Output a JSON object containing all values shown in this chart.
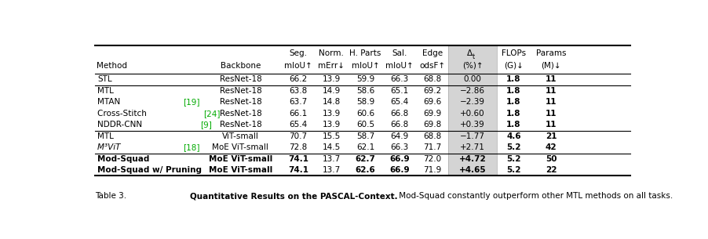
{
  "figsize": [
    9.02,
    3.05
  ],
  "dpi": 100,
  "rows": [
    [
      "STL",
      "ResNet-18",
      "66.2",
      "13.9",
      "59.9",
      "66.3",
      "68.8",
      "0.00",
      "1.8",
      "11"
    ],
    [
      "MTL",
      "ResNet-18",
      "63.8",
      "14.9",
      "58.6",
      "65.1",
      "69.2",
      "−2.86",
      "1.8",
      "11"
    ],
    [
      "MTAN",
      "ResNet-18",
      "63.7",
      "14.8",
      "58.9",
      "65.4",
      "69.6",
      "−2.39",
      "1.8",
      "11"
    ],
    [
      "Cross-Stitch",
      "ResNet-18",
      "66.1",
      "13.9",
      "60.6",
      "66.8",
      "69.9",
      "+0.60",
      "1.8",
      "11"
    ],
    [
      "NDDR-CNN",
      "ResNet-18",
      "65.4",
      "13.9",
      "60.5",
      "66.8",
      "69.8",
      "+0.39",
      "1.8",
      "11"
    ],
    [
      "MTL",
      "ViT-small",
      "70.7",
      "15.5",
      "58.7",
      "64.9",
      "68.8",
      "−1.77",
      "4.6",
      "21"
    ],
    [
      "M³ViT",
      "MoE ViT-small",
      "72.8",
      "14.5",
      "62.1",
      "66.3",
      "71.7",
      "+2.71",
      "5.2",
      "42"
    ],
    [
      "Mod-Squad",
      "MoE ViT-small",
      "74.1",
      "13.7",
      "62.7",
      "66.9",
      "72.0",
      "+4.72",
      "5.2",
      "50"
    ],
    [
      "Mod-Squad w/ Pruning",
      "MoE ViT-small",
      "74.1",
      "13.7",
      "62.6",
      "66.9",
      "71.9",
      "+4.65",
      "5.2",
      "22"
    ]
  ],
  "citations": {
    "MTAN": "[19]",
    "Cross-Stitch": "[24]",
    "NDDR-CNN": "[9]",
    "M³ViT": "[18]"
  },
  "italic_rows": [
    6
  ],
  "bold_data_rows": [
    7,
    8
  ],
  "bold_data_cols": [
    0,
    1,
    2,
    4,
    5,
    7
  ],
  "group_separators_after": [
    0,
    4,
    6
  ],
  "delta_col_idx": 7,
  "flops_params_bold_all": true,
  "citation_color": "#00aa00",
  "delta_bg": "#d4d4d4",
  "header1": [
    "",
    "",
    "Seg.",
    "Norm.",
    "H. Parts",
    "Sal.",
    "Edge",
    "Δt",
    "FLOPs",
    "Params"
  ],
  "header2": [
    "Method",
    "Backbone",
    "mIoU↑",
    "mErr↓",
    "mIoU↑",
    "mIoU↑",
    "odsF↑",
    "(%)↑",
    "(G)↓",
    "(M)↓"
  ],
  "caption_prefix": "Table 3. ",
  "caption_bold": "Quantitative Results on the PASCAL-Context.",
  "caption_normal": " Mod-Squad constantly outperform other MTL methods on all tasks."
}
